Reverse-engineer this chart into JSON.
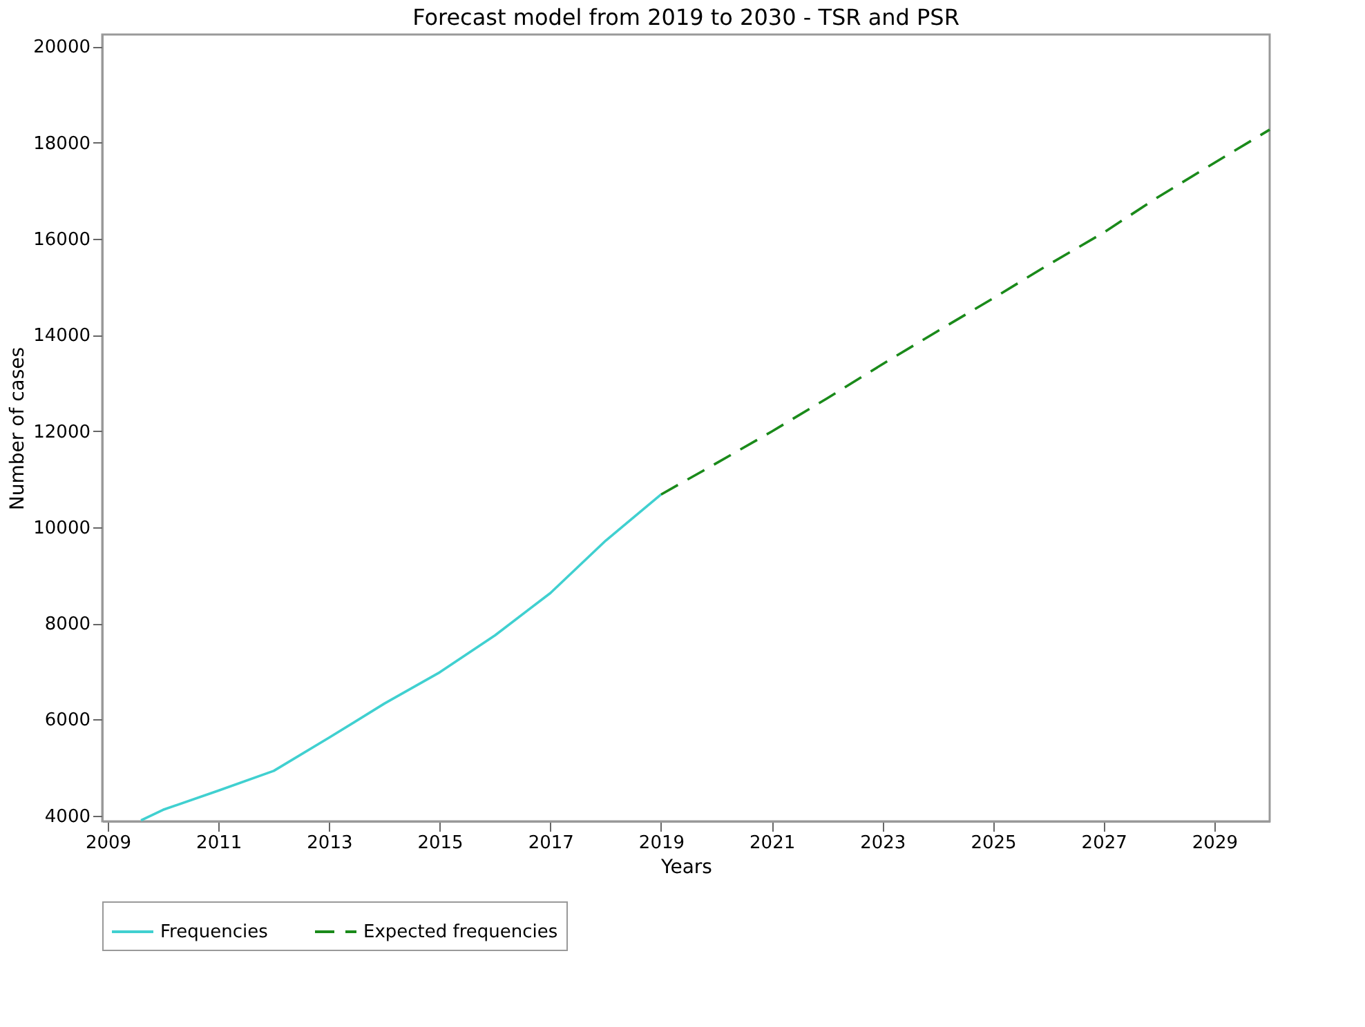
{
  "chart_data": {
    "type": "line",
    "title": "Forecast model from 2019 to 2030 - TSR and PSR",
    "xlabel": "Years",
    "ylabel": "Number of cases",
    "xlim": [
      2008.9,
      2030
    ],
    "xticks": [
      2009,
      2011,
      2013,
      2015,
      2017,
      2019,
      2021,
      2023,
      2025,
      2027,
      2029
    ],
    "ylim": [
      3880,
      20250
    ],
    "yticks": [
      4000,
      6000,
      8000,
      10000,
      12000,
      14000,
      16000,
      18000,
      20000
    ],
    "grid": false,
    "legend": "bottom",
    "marker": "none",
    "series": [
      {
        "name": "Frequencies",
        "color": "#40d0d0",
        "line_style": "solid",
        "x": [
          2009.6,
          2010,
          2011,
          2012,
          2013,
          2014,
          2015,
          2016,
          2017,
          2018,
          2019
        ],
        "values": [
          3900,
          4120,
          4520,
          4930,
          5620,
          6330,
          6980,
          7750,
          8630,
          9720,
          10680
        ]
      },
      {
        "name": "Expected frequencies",
        "color": "#1a8a1a",
        "line_style": "dashed",
        "x": [
          2019,
          2020,
          2021,
          2022,
          2023,
          2024,
          2025,
          2026,
          2027,
          2028,
          2029,
          2030
        ],
        "values": [
          10680,
          11330,
          11990,
          12680,
          13390,
          14080,
          14760,
          15460,
          16130,
          16880,
          17580,
          18270
        ]
      }
    ]
  }
}
